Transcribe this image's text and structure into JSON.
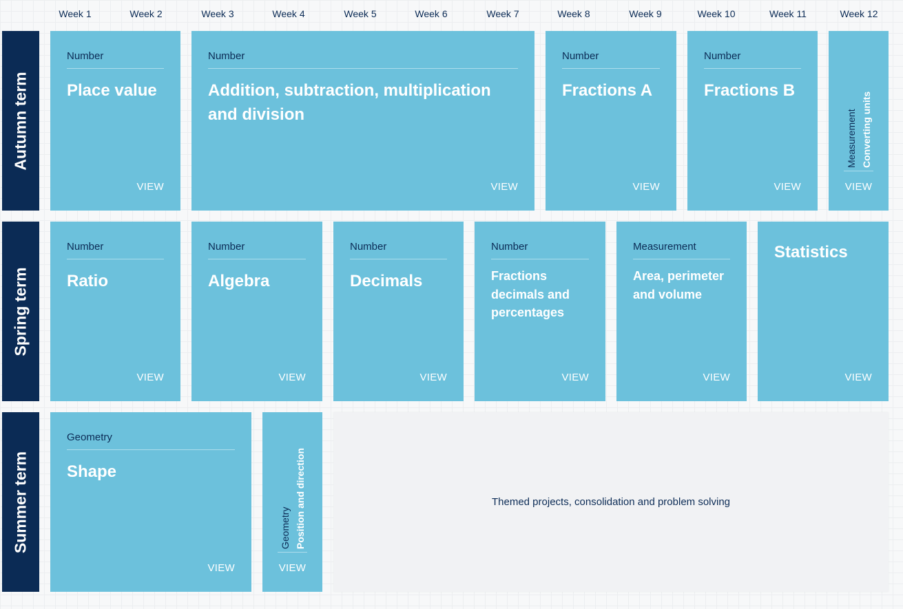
{
  "weeks": [
    "Week 1",
    "Week 2",
    "Week 3",
    "Week 4",
    "Week 5",
    "Week 6",
    "Week 7",
    "Week 8",
    "Week 9",
    "Week 10",
    "Week 11",
    "Week 12"
  ],
  "terms": {
    "autumn": "Autumn term",
    "spring": "Spring term",
    "summer": "Summer term"
  },
  "view_label": "VIEW",
  "autumn": {
    "place_value": {
      "strand": "Number",
      "title": "Place value"
    },
    "asmd": {
      "strand": "Number",
      "title": "Addition, subtraction, multiplication and division"
    },
    "fractions_a": {
      "strand": "Number",
      "title": "Fractions A"
    },
    "fractions_b": {
      "strand": "Number",
      "title": "Fractions B"
    },
    "converting_units": {
      "strand": "Measurement",
      "title": "Converting units"
    }
  },
  "spring": {
    "ratio": {
      "strand": "Number",
      "title": "Ratio"
    },
    "algebra": {
      "strand": "Number",
      "title": "Algebra"
    },
    "decimals": {
      "strand": "Number",
      "title": "Decimals"
    },
    "fdp": {
      "strand": "Number",
      "title": "Fractions decimals and percentages"
    },
    "area": {
      "strand": "Measurement",
      "title": "Area, perimeter and volume"
    },
    "statistics": {
      "title": "Statistics"
    }
  },
  "summer": {
    "shape": {
      "strand": "Geometry",
      "title": "Shape"
    },
    "position": {
      "strand": "Geometry",
      "title": "Position and direction"
    },
    "themed": "Themed projects, consolidation and problem solving"
  },
  "colors": {
    "card": "#6cc1dc",
    "term": "#0b2b55",
    "themed": "#f1f2f4"
  }
}
